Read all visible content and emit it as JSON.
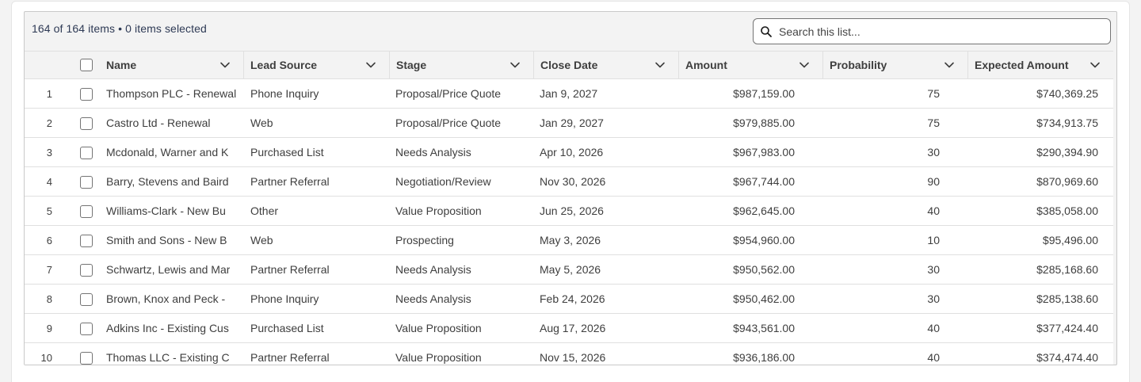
{
  "list_info": {
    "items_count": "164 of 164 items",
    "separator": "•",
    "selected_count": "0 items selected"
  },
  "search": {
    "placeholder": "Search this list...",
    "value": ""
  },
  "columns": {
    "name": "Name",
    "lead_source": "Lead Source",
    "stage": "Stage",
    "close_date": "Close Date",
    "amount": "Amount",
    "probability": "Probability",
    "expected_amount": "Expected Amount"
  },
  "rows": [
    {
      "num": "1",
      "name": "Thompson PLC - Renewal",
      "lead_source": "Phone Inquiry",
      "stage": "Proposal/Price Quote",
      "close_date": "Jan 9, 2027",
      "amount": "$987,159.00",
      "probability": "75",
      "expected_amount": "$740,369.25"
    },
    {
      "num": "2",
      "name": "Castro Ltd - Renewal",
      "lead_source": "Web",
      "stage": "Proposal/Price Quote",
      "close_date": "Jan 29, 2027",
      "amount": "$979,885.00",
      "probability": "75",
      "expected_amount": "$734,913.75"
    },
    {
      "num": "3",
      "name": "Mcdonald, Warner and K",
      "lead_source": "Purchased List",
      "stage": "Needs Analysis",
      "close_date": "Apr 10, 2026",
      "amount": "$967,983.00",
      "probability": "30",
      "expected_amount": "$290,394.90"
    },
    {
      "num": "4",
      "name": "Barry, Stevens and Baird",
      "lead_source": "Partner Referral",
      "stage": "Negotiation/Review",
      "close_date": "Nov 30, 2026",
      "amount": "$967,744.00",
      "probability": "90",
      "expected_amount": "$870,969.60"
    },
    {
      "num": "5",
      "name": "Williams-Clark - New Bu",
      "lead_source": "Other",
      "stage": "Value Proposition",
      "close_date": "Jun 25, 2026",
      "amount": "$962,645.00",
      "probability": "40",
      "expected_amount": "$385,058.00"
    },
    {
      "num": "6",
      "name": "Smith and Sons - New B",
      "lead_source": "Web",
      "stage": "Prospecting",
      "close_date": "May 3, 2026",
      "amount": "$954,960.00",
      "probability": "10",
      "expected_amount": "$95,496.00"
    },
    {
      "num": "7",
      "name": "Schwartz, Lewis and Mar",
      "lead_source": "Partner Referral",
      "stage": "Needs Analysis",
      "close_date": "May 5, 2026",
      "amount": "$950,562.00",
      "probability": "30",
      "expected_amount": "$285,168.60"
    },
    {
      "num": "8",
      "name": "Brown, Knox and Peck -",
      "lead_source": "Phone Inquiry",
      "stage": "Needs Analysis",
      "close_date": "Feb 24, 2026",
      "amount": "$950,462.00",
      "probability": "30",
      "expected_amount": "$285,138.60"
    },
    {
      "num": "9",
      "name": "Adkins Inc - Existing Cus",
      "lead_source": "Purchased List",
      "stage": "Value Proposition",
      "close_date": "Aug 17, 2026",
      "amount": "$943,561.00",
      "probability": "40",
      "expected_amount": "$377,424.40"
    },
    {
      "num": "10",
      "name": "Thomas LLC - Existing C",
      "lead_source": "Partner Referral",
      "stage": "Value Proposition",
      "close_date": "Nov 15, 2026",
      "amount": "$936,186.00",
      "probability": "40",
      "expected_amount": "$374,474.40"
    }
  ],
  "icons": {
    "search": "search-icon",
    "sort": "chevron-down-icon",
    "checkbox": "checkbox-icon"
  },
  "colors": {
    "page_bg": "#f3f3f3",
    "card_bg": "#ffffff",
    "border": "#c9c9c9",
    "header_text": "#3e3e3e",
    "info_text": "#2e3a55"
  }
}
